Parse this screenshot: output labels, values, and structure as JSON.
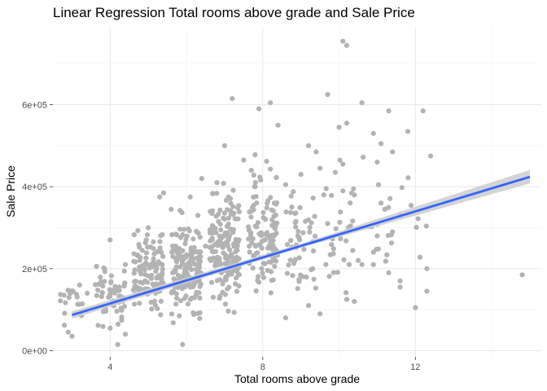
{
  "chart_data": {
    "type": "scatter",
    "title": "Linear Regression Total rooms above grade and Sale Price",
    "xlabel": "Total rooms above grade",
    "ylabel": "Sale Price",
    "xlim": [
      2.5,
      15.3
    ],
    "ylim": [
      -15000,
      790000
    ],
    "x_ticks": [
      4,
      8,
      12
    ],
    "x_tick_labels": [
      "4",
      "8",
      "12"
    ],
    "y_ticks": [
      0,
      200000,
      400000,
      600000
    ],
    "y_tick_labels": [
      "0e+00",
      "2e+05",
      "4e+05",
      "6e+05"
    ],
    "grid": true,
    "legend": "none",
    "colors": {
      "points": "#b3b3b3",
      "fit_line": "#3366ff",
      "confidence_band": "#cccccc"
    },
    "regression_line": {
      "x": [
        3,
        15
      ],
      "y": [
        87000,
        424000
      ]
    },
    "confidence_band": {
      "x": [
        3,
        9,
        15
      ],
      "lower": [
        78000,
        251000,
        408000
      ],
      "upper": [
        96000,
        261000,
        441000
      ]
    },
    "point_clusters": [
      {
        "x": 3,
        "y_min": 60000,
        "y_max": 200000,
        "count": 15
      },
      {
        "x": 4,
        "y_min": 35000,
        "y_max": 270000,
        "count": 60
      },
      {
        "x": 5,
        "y_min": 55000,
        "y_max": 380000,
        "count": 120
      },
      {
        "x": 6,
        "y_min": 40000,
        "y_max": 420000,
        "count": 160
      },
      {
        "x": 7,
        "y_min": 60000,
        "y_max": 500000,
        "count": 170
      },
      {
        "x": 8,
        "y_min": 80000,
        "y_max": 550000,
        "count": 110
      },
      {
        "x": 9,
        "y_min": 80000,
        "y_max": 500000,
        "count": 50
      },
      {
        "x": 10,
        "y_min": 90000,
        "y_max": 560000,
        "count": 28
      },
      {
        "x": 11,
        "y_min": 100000,
        "y_max": 580000,
        "count": 14
      },
      {
        "x": 12,
        "y_min": 100000,
        "y_max": 580000,
        "count": 7
      }
    ],
    "points": [
      [
        2.7,
        137000
      ],
      [
        2.8,
        62000
      ],
      [
        2.9,
        45000
      ],
      [
        3.0,
        35000
      ],
      [
        3.2,
        160000
      ],
      [
        3.4,
        140000
      ],
      [
        4.0,
        270000
      ],
      [
        4.4,
        210000
      ],
      [
        4.2,
        15000
      ],
      [
        4.4,
        40000
      ],
      [
        4.0,
        55000
      ],
      [
        5.3,
        375000
      ],
      [
        5.4,
        385000
      ],
      [
        5.6,
        345000
      ],
      [
        5.0,
        300000
      ],
      [
        5.9,
        15000
      ],
      [
        6.1,
        375000
      ],
      [
        6.4,
        420000
      ],
      [
        6.3,
        330000
      ],
      [
        6.5,
        255000
      ],
      [
        6.8,
        410000
      ],
      [
        7.0,
        500000
      ],
      [
        7.2,
        615000
      ],
      [
        7.1,
        375000
      ],
      [
        7.5,
        465000
      ],
      [
        7.7,
        440000
      ],
      [
        7.8,
        400000
      ],
      [
        7.8,
        478000
      ],
      [
        8.1,
        462000
      ],
      [
        8.2,
        443000
      ],
      [
        7.9,
        590000
      ],
      [
        8.2,
        605000
      ],
      [
        8.4,
        550000
      ],
      [
        8.6,
        405000
      ],
      [
        8.3,
        360000
      ],
      [
        9.0,
        430000
      ],
      [
        9.2,
        500000
      ],
      [
        9.4,
        485000
      ],
      [
        9.5,
        445000
      ],
      [
        9.6,
        380000
      ],
      [
        9.7,
        310000
      ],
      [
        9.7,
        625000
      ],
      [
        9.9,
        435000
      ],
      [
        10.0,
        545000
      ],
      [
        10.2,
        555000
      ],
      [
        10.1,
        755000
      ],
      [
        10.2,
        745000
      ],
      [
        10.4,
        380000
      ],
      [
        10.1,
        455000
      ],
      [
        10.6,
        605000
      ],
      [
        10.9,
        530000
      ],
      [
        11.1,
        505000
      ],
      [
        11.3,
        585000
      ],
      [
        11.4,
        485000
      ],
      [
        11.0,
        460000
      ],
      [
        11.1,
        360000
      ],
      [
        11.2,
        345000
      ],
      [
        11.0,
        280000
      ],
      [
        11.4,
        290000
      ],
      [
        11.8,
        535000
      ],
      [
        11.6,
        330000
      ],
      [
        12.2,
        585000
      ],
      [
        12.4,
        475000
      ],
      [
        12.3,
        200000
      ],
      [
        12.3,
        145000
      ],
      [
        12.0,
        105000
      ],
      [
        11.6,
        170000
      ],
      [
        11.6,
        155000
      ],
      [
        10.2,
        125000
      ],
      [
        10.4,
        120000
      ],
      [
        10.5,
        220000
      ],
      [
        10.6,
        210000
      ],
      [
        10.9,
        240000
      ],
      [
        10.9,
        210000
      ],
      [
        11.3,
        190000
      ],
      [
        9.5,
        90000
      ],
      [
        8.6,
        80000
      ],
      [
        9.2,
        110000
      ],
      [
        14.8,
        185000
      ]
    ]
  }
}
